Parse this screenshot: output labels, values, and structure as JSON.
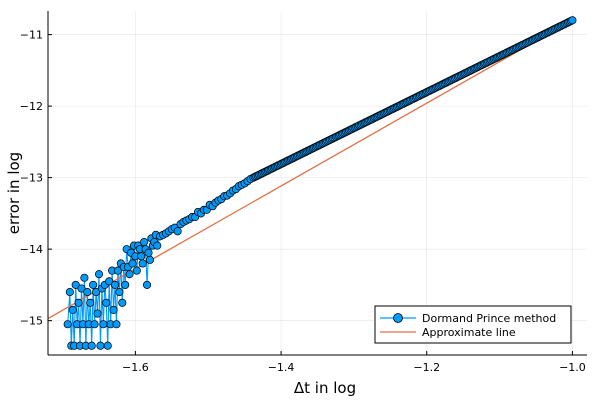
{
  "chart_data": {
    "type": "line",
    "xlabel": "Δt in log",
    "ylabel": "error in log",
    "xlim": [
      -1.72,
      -0.98
    ],
    "ylim": [
      -15.48,
      -10.67
    ],
    "x_ticks": [
      -1.6,
      -1.4,
      -1.2,
      -1.0
    ],
    "x_tick_labels": [
      "−1.6",
      "−1.4",
      "−1.2",
      "−1.0"
    ],
    "y_ticks": [
      -15,
      -14,
      -13,
      -12,
      -11
    ],
    "y_tick_labels": [
      "−15",
      "−14",
      "−13",
      "−12",
      "−11"
    ],
    "grid": true,
    "legend_position": "bottom-right",
    "series": [
      {
        "name": "Dormand Prince method",
        "style": "line-with-markers",
        "color": "#009AFA",
        "points": [
          [
            -1.693,
            -15.05
          ],
          [
            -1.69,
            -14.6
          ],
          [
            -1.688,
            -15.35
          ],
          [
            -1.686,
            -14.85
          ],
          [
            -1.684,
            -15.35
          ],
          [
            -1.682,
            -14.5
          ],
          [
            -1.68,
            -15.05
          ],
          [
            -1.678,
            -14.75
          ],
          [
            -1.676,
            -15.35
          ],
          [
            -1.674,
            -14.55
          ],
          [
            -1.672,
            -15.05
          ],
          [
            -1.67,
            -14.4
          ],
          [
            -1.668,
            -15.35
          ],
          [
            -1.666,
            -14.6
          ],
          [
            -1.664,
            -15.05
          ],
          [
            -1.662,
            -14.75
          ],
          [
            -1.66,
            -15.35
          ],
          [
            -1.658,
            -14.5
          ],
          [
            -1.656,
            -15.05
          ],
          [
            -1.654,
            -14.6
          ],
          [
            -1.652,
            -14.9
          ],
          [
            -1.65,
            -14.35
          ],
          [
            -1.648,
            -15.35
          ],
          [
            -1.646,
            -14.55
          ],
          [
            -1.644,
            -15.05
          ],
          [
            -1.642,
            -14.5
          ],
          [
            -1.64,
            -14.75
          ],
          [
            -1.638,
            -15.35
          ],
          [
            -1.636,
            -14.45
          ],
          [
            -1.634,
            -15.05
          ],
          [
            -1.632,
            -14.3
          ],
          [
            -1.63,
            -14.85
          ],
          [
            -1.628,
            -14.5
          ],
          [
            -1.626,
            -15.05
          ],
          [
            -1.624,
            -14.3
          ],
          [
            -1.622,
            -14.6
          ],
          [
            -1.62,
            -14.2
          ],
          [
            -1.618,
            -14.75
          ],
          [
            -1.616,
            -14.25
          ],
          [
            -1.614,
            -14.5
          ],
          [
            -1.612,
            -14.0
          ],
          [
            -1.61,
            -14.25
          ],
          [
            -1.608,
            -14.35
          ],
          [
            -1.606,
            -14.05
          ],
          [
            -1.604,
            -14.2
          ],
          [
            -1.602,
            -13.95
          ],
          [
            -1.6,
            -14.1
          ],
          [
            -1.598,
            -14.3
          ],
          [
            -1.596,
            -13.95
          ],
          [
            -1.594,
            -14.0
          ],
          [
            -1.592,
            -14.1
          ],
          [
            -1.59,
            -14.2
          ],
          [
            -1.588,
            -13.9
          ],
          [
            -1.586,
            -14.0
          ],
          [
            -1.584,
            -14.5
          ],
          [
            -1.582,
            -14.05
          ],
          [
            -1.58,
            -14.15
          ],
          [
            -1.578,
            -13.85
          ],
          [
            -1.576,
            -13.95
          ],
          [
            -1.574,
            -13.9
          ],
          [
            -1.572,
            -13.8
          ],
          [
            -1.57,
            -13.95
          ],
          [
            -1.566,
            -13.82
          ],
          [
            -1.562,
            -13.8
          ],
          [
            -1.558,
            -13.78
          ],
          [
            -1.554,
            -13.75
          ],
          [
            -1.55,
            -13.72
          ],
          [
            -1.546,
            -13.7
          ],
          [
            -1.542,
            -13.75
          ],
          [
            -1.538,
            -13.65
          ],
          [
            -1.534,
            -13.62
          ],
          [
            -1.53,
            -13.6
          ],
          [
            -1.526,
            -13.58
          ],
          [
            -1.522,
            -13.55
          ],
          [
            -1.518,
            -13.55
          ],
          [
            -1.514,
            -13.48
          ],
          [
            -1.51,
            -13.5
          ],
          [
            -1.506,
            -13.45
          ],
          [
            -1.502,
            -13.45
          ],
          [
            -1.498,
            -13.38
          ],
          [
            -1.494,
            -13.4
          ],
          [
            -1.49,
            -13.35
          ],
          [
            -1.486,
            -13.32
          ],
          [
            -1.482,
            -13.3
          ],
          [
            -1.478,
            -13.26
          ],
          [
            -1.474,
            -13.25
          ],
          [
            -1.47,
            -13.22
          ],
          [
            -1.466,
            -13.18
          ],
          [
            -1.462,
            -13.16
          ],
          [
            -1.458,
            -13.12
          ],
          [
            -1.454,
            -13.1
          ],
          [
            -1.45,
            -13.08
          ],
          [
            -1.446,
            -13.05
          ],
          [
            -1.442,
            -13.02
          ],
          [
            -1.438,
            -13.0
          ]
        ]
      },
      {
        "name": "Approximate line",
        "style": "line",
        "color": "#E26F46",
        "points": [
          [
            -1.72,
            -14.97
          ],
          [
            -1.0,
            -10.8
          ]
        ]
      }
    ]
  }
}
